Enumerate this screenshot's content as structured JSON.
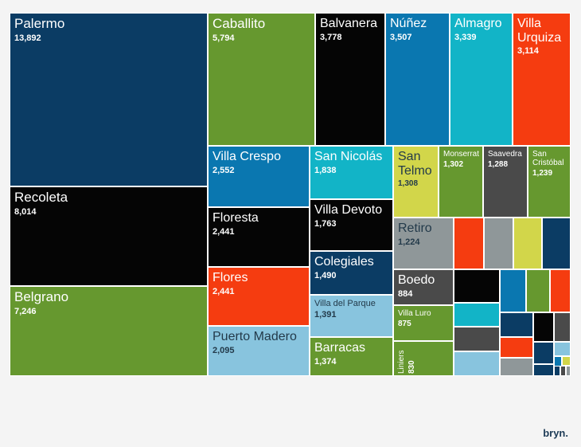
{
  "brand": "bryn.",
  "chart_data": {
    "type": "treemap",
    "title": "",
    "colors": {
      "navy": "#0b3c64",
      "green": "#66982f",
      "black": "#050505",
      "blue": "#0a77b0",
      "cyan": "#12b4c7",
      "red": "#f53c10",
      "light_blue": "#88c4de",
      "gray": "#8f9799",
      "dark_gray": "#4a4a4a",
      "yellow": "#d2d64a"
    },
    "items": [
      {
        "name": "Palermo",
        "value": 13892,
        "color": "#0b3c64"
      },
      {
        "name": "Recoleta",
        "value": 8014,
        "color": "#050505"
      },
      {
        "name": "Belgrano",
        "value": 7246,
        "color": "#66982f"
      },
      {
        "name": "Caballito",
        "value": 5794,
        "color": "#66982f"
      },
      {
        "name": "Balvanera",
        "value": 3778,
        "color": "#050505"
      },
      {
        "name": "Núñez",
        "value": 3507,
        "color": "#0a77b0"
      },
      {
        "name": "Almagro",
        "value": 3339,
        "color": "#12b4c7"
      },
      {
        "name": "Villa Urquiza",
        "value": 3114,
        "color": "#f53c10"
      },
      {
        "name": "Villa Crespo",
        "value": 2552,
        "color": "#0a77b0"
      },
      {
        "name": "Floresta",
        "value": 2441,
        "color": "#050505"
      },
      {
        "name": "Flores",
        "value": 2441,
        "color": "#f53c10"
      },
      {
        "name": "Puerto Madero",
        "value": 2095,
        "color": "#88c4de"
      },
      {
        "name": "San Nicolás",
        "value": 1838,
        "color": "#12b4c7"
      },
      {
        "name": "Villa Devoto",
        "value": 1763,
        "color": "#050505"
      },
      {
        "name": "Colegiales",
        "value": 1490,
        "color": "#0b3c64"
      },
      {
        "name": "Villa del Parque",
        "value": 1391,
        "color": "#88c4de"
      },
      {
        "name": "Barracas",
        "value": 1374,
        "color": "#66982f"
      },
      {
        "name": "San Telmo",
        "value": 1308,
        "color": "#d2d64a"
      },
      {
        "name": "Monserrat",
        "value": 1302,
        "color": "#66982f"
      },
      {
        "name": "Saavedra",
        "value": 1288,
        "color": "#4a4a4a"
      },
      {
        "name": "San Cristóbal",
        "value": 1239,
        "color": "#66982f"
      },
      {
        "name": "Retiro",
        "value": 1224,
        "color": "#8f9799"
      },
      {
        "name": "Boedo",
        "value": 884,
        "color": "#4a4a4a"
      },
      {
        "name": "Villa Luro",
        "value": 875,
        "color": "#66982f"
      },
      {
        "name": "Liniers",
        "value": 830,
        "color": "#66982f"
      }
    ],
    "unlabeled_colors": [
      "#f53c10",
      "#8f9799",
      "#d2d64a",
      "#0b3c64",
      "#050505",
      "#0a77b0",
      "#66982f",
      "#f53c10",
      "#12b4c7",
      "#4a4a4a",
      "#0b3c64",
      "#050505",
      "#4a4a4a",
      "#f53c10",
      "#0b3c64",
      "#88c4de",
      "#8f9799",
      "#0b3c64",
      "#0a77b0",
      "#d2d64a",
      "#66982f",
      "#0b3c64",
      "#4a4a4a",
      "#8f9799"
    ]
  }
}
